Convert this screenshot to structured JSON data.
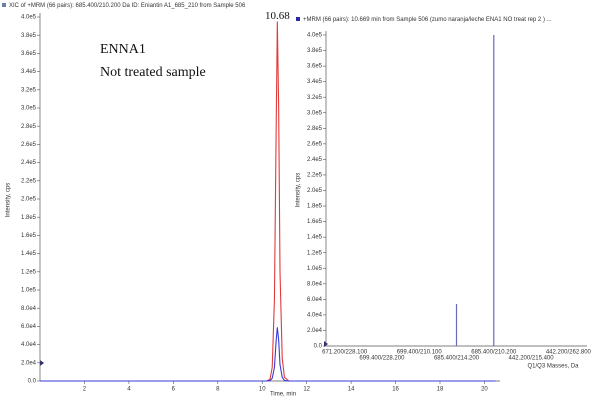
{
  "chart_data": [
    {
      "type": "line",
      "title": "XIC of +MRM (66 pairs): 685.400/210.200 Da ID: Eniantin A1_685_210 from Sample 506",
      "annotations": [
        "ENNA1",
        "Not treated sample"
      ],
      "peak_label": "10.68",
      "x_label": "Time, min",
      "y_label": "Intensity, cps",
      "x": [
        0,
        10.2,
        10.35,
        10.45,
        10.55,
        10.62,
        10.68,
        10.74,
        10.8,
        10.9,
        11.0,
        11.2,
        20.5
      ],
      "series": [
        {
          "color": "#e03a3a",
          "values": [
            0,
            0,
            2000,
            15000,
            90000,
            260000,
            395000,
            300000,
            120000,
            25000,
            4000,
            0,
            0
          ]
        },
        {
          "color": "#3a3ad8",
          "values": [
            0,
            0,
            500,
            3000,
            15000,
            42000,
            59000,
            45000,
            18000,
            4000,
            600,
            0,
            0
          ]
        }
      ],
      "xlim": [
        0,
        20.7
      ],
      "ylim": [
        0,
        400000
      ],
      "xticks": [
        2,
        4,
        6,
        8,
        10,
        12,
        14,
        16,
        18,
        20
      ],
      "yticks": [
        {
          "value": 0,
          "label": "0.0"
        },
        {
          "value": 20000,
          "label": "2.0e4"
        },
        {
          "value": 40000,
          "label": "4.0e4"
        },
        {
          "value": 60000,
          "label": "6.0e4"
        },
        {
          "value": 80000,
          "label": "8.0e4"
        },
        {
          "value": 100000,
          "label": "1.0e5"
        },
        {
          "value": 120000,
          "label": "1.2e5"
        },
        {
          "value": 140000,
          "label": "1.4e5"
        },
        {
          "value": 160000,
          "label": "1.6e5"
        },
        {
          "value": 180000,
          "label": "1.8e5"
        },
        {
          "value": 200000,
          "label": "2.0e5"
        },
        {
          "value": 220000,
          "label": "2.2e5"
        },
        {
          "value": 240000,
          "label": "2.4e5"
        },
        {
          "value": 260000,
          "label": "2.6e5"
        },
        {
          "value": 280000,
          "label": "2.8e5"
        },
        {
          "value": 300000,
          "label": "3.0e5"
        },
        {
          "value": 320000,
          "label": "3.2e5"
        },
        {
          "value": 340000,
          "label": "3.4e5"
        },
        {
          "value": 360000,
          "label": "3.6e5"
        },
        {
          "value": 380000,
          "label": "3.8e5"
        },
        {
          "value": 400000,
          "label": "4.0e5"
        }
      ]
    },
    {
      "type": "bar",
      "title": "+MRM (66 pairs): 10.669 min from Sample 506 (zumo naranja/leche ENA1 NO treat rep 2 ) ...",
      "x_label": "Q1/Q3 Masses, Da",
      "y_label": "Intensity, cps",
      "color": "#6a6ab8",
      "categories": [
        "671.200/228.100",
        "699.400/228.200",
        "699.400/210.100",
        "685.400/214.200",
        "685.400/210.200",
        "442.200/215.400",
        "442.200/262.800"
      ],
      "values": [
        0,
        0,
        0,
        54000,
        400000,
        0,
        0
      ],
      "ylim": [
        0,
        400000
      ],
      "yticks": [
        {
          "value": 0,
          "label": "0.0"
        },
        {
          "value": 20000,
          "label": "2.0e4"
        },
        {
          "value": 40000,
          "label": "4.0e4"
        },
        {
          "value": 60000,
          "label": "6.0e4"
        },
        {
          "value": 80000,
          "label": "8.0e4"
        },
        {
          "value": 100000,
          "label": "1.0e5"
        },
        {
          "value": 120000,
          "label": "1.2e5"
        },
        {
          "value": 140000,
          "label": "1.4e5"
        },
        {
          "value": 160000,
          "label": "1.6e5"
        },
        {
          "value": 180000,
          "label": "1.8e5"
        },
        {
          "value": 200000,
          "label": "2.0e5"
        },
        {
          "value": 220000,
          "label": "2.2e5"
        },
        {
          "value": 240000,
          "label": "2.4e5"
        },
        {
          "value": 260000,
          "label": "2.6e5"
        },
        {
          "value": 280000,
          "label": "2.8e5"
        },
        {
          "value": 300000,
          "label": "3.0e5"
        },
        {
          "value": 320000,
          "label": "3.2e5"
        },
        {
          "value": 340000,
          "label": "3.4e5"
        },
        {
          "value": 360000,
          "label": "3.6e5"
        },
        {
          "value": 380000,
          "label": "3.8e5"
        },
        {
          "value": 400000,
          "label": "4.0e5"
        }
      ]
    }
  ]
}
